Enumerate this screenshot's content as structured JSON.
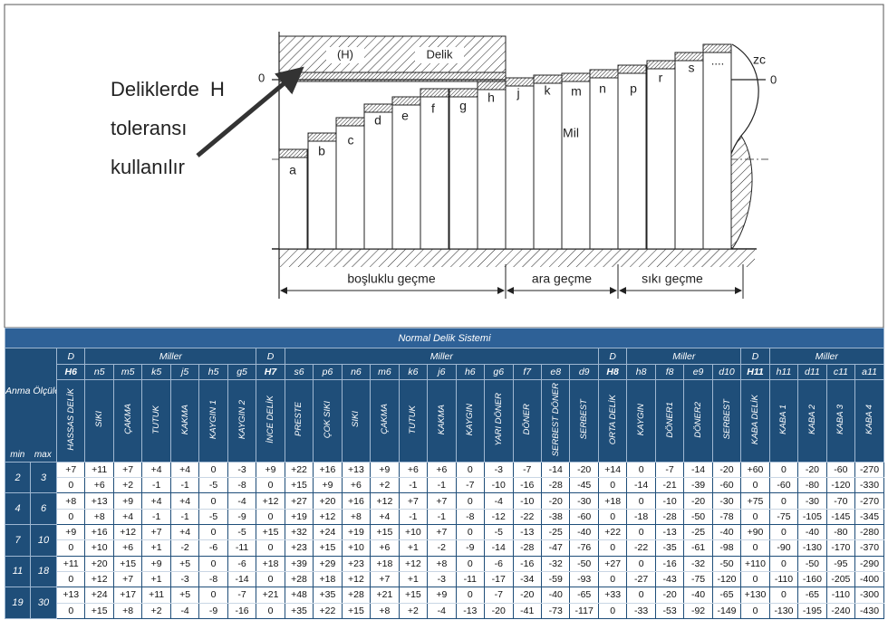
{
  "diagram": {
    "note_lines": [
      "Deliklerde  H",
      "toleransı",
      "kullanılır"
    ],
    "hole_code": "(H)",
    "hole_label": "Delik",
    "zero_left": "0",
    "zero_right": "0",
    "shaft_letters": [
      "a",
      "b",
      "c",
      "d",
      "e",
      "f",
      "g",
      "h",
      "j",
      "k",
      "m",
      "n",
      "p",
      "r",
      "s",
      "zc"
    ],
    "dots": "....",
    "shaft_label": "Mil",
    "fit_ranges": [
      "boşluklu geçme",
      "ara geçme",
      "sıkı geçme"
    ]
  },
  "table": {
    "title": "Normal Delik Sistemi",
    "size_header": "Anma Ölçüleri",
    "min": "min",
    "max": "max",
    "groups": [
      {
        "label": "D",
        "columns": [
          {
            "code": "H6",
            "name": "HASSAS DELİK"
          }
        ]
      },
      {
        "label": "Miller",
        "columns": [
          {
            "code": "n5",
            "name": "SIKI"
          },
          {
            "code": "m5",
            "name": "ÇAKMA"
          },
          {
            "code": "k5",
            "name": "TUTUK"
          },
          {
            "code": "j5",
            "name": "KAKMA"
          },
          {
            "code": "h5",
            "name": "KAYGIN 1"
          },
          {
            "code": "g5",
            "name": "KAYGIN 2"
          }
        ]
      },
      {
        "label": "D",
        "columns": [
          {
            "code": "H7",
            "name": "İNCE DELİK"
          }
        ]
      },
      {
        "label": "Miller",
        "columns": [
          {
            "code": "s6",
            "name": "PRESTE"
          },
          {
            "code": "p6",
            "name": "ÇOK SIKI"
          },
          {
            "code": "n6",
            "name": "SIKI"
          },
          {
            "code": "m6",
            "name": "ÇAKMA"
          },
          {
            "code": "k6",
            "name": "TUTUK"
          },
          {
            "code": "j6",
            "name": "KAKMA"
          },
          {
            "code": "h6",
            "name": "KAYGIN"
          },
          {
            "code": "g6",
            "name": "YARI DÖNER"
          },
          {
            "code": "f7",
            "name": "DÖNER"
          },
          {
            "code": "e8",
            "name": "SERBEST DÖNER"
          },
          {
            "code": "d9",
            "name": "SERBEST"
          }
        ]
      },
      {
        "label": "D",
        "columns": [
          {
            "code": "H8",
            "name": "ORTA DELİK"
          }
        ]
      },
      {
        "label": "Miller",
        "columns": [
          {
            "code": "h8",
            "name": "KAYGIN"
          },
          {
            "code": "f8",
            "name": "DÖNER1"
          },
          {
            "code": "e9",
            "name": "DÖNER2"
          },
          {
            "code": "d10",
            "name": "SERBEST"
          }
        ]
      },
      {
        "label": "D",
        "columns": [
          {
            "code": "H11",
            "name": "KABA DELİK"
          }
        ]
      },
      {
        "label": "Miller",
        "columns": [
          {
            "code": "h11",
            "name": "KABA 1"
          },
          {
            "code": "d11",
            "name": "KABA 2"
          },
          {
            "code": "c11",
            "name": "KABA 3"
          },
          {
            "code": "a11",
            "name": "KABA 4"
          }
        ]
      }
    ],
    "rows": [
      {
        "min": "2",
        "max": "3",
        "upper": [
          "+7",
          "+11",
          "+7",
          "+4",
          "+4",
          "0",
          "-3",
          "+9",
          "+22",
          "+16",
          "+13",
          "+9",
          "+6",
          "+6",
          "0",
          "-3",
          "-7",
          "-14",
          "-20",
          "+14",
          "0",
          "-7",
          "-14",
          "-20",
          "+60",
          "0",
          "-20",
          "-60",
          "-270"
        ],
        "lower": [
          "0",
          "+6",
          "+2",
          "-1",
          "-1",
          "-5",
          "-8",
          "0",
          "+15",
          "+9",
          "+6",
          "+2",
          "-1",
          "-1",
          "-7",
          "-10",
          "-16",
          "-28",
          "-45",
          "0",
          "-14",
          "-21",
          "-39",
          "-60",
          "0",
          "-60",
          "-80",
          "-120",
          "-330"
        ]
      },
      {
        "min": "4",
        "max": "6",
        "upper": [
          "+8",
          "+13",
          "+9",
          "+4",
          "+4",
          "0",
          "-4",
          "+12",
          "+27",
          "+20",
          "+16",
          "+12",
          "+7",
          "+7",
          "0",
          "-4",
          "-10",
          "-20",
          "-30",
          "+18",
          "0",
          "-10",
          "-20",
          "-30",
          "+75",
          "0",
          "-30",
          "-70",
          "-270"
        ],
        "lower": [
          "0",
          "+8",
          "+4",
          "-1",
          "-1",
          "-5",
          "-9",
          "0",
          "+19",
          "+12",
          "+8",
          "+4",
          "-1",
          "-1",
          "-8",
          "-12",
          "-22",
          "-38",
          "-60",
          "0",
          "-18",
          "-28",
          "-50",
          "-78",
          "0",
          "-75",
          "-105",
          "-145",
          "-345"
        ]
      },
      {
        "min": "7",
        "max": "10",
        "upper": [
          "+9",
          "+16",
          "+12",
          "+7",
          "+4",
          "0",
          "-5",
          "+15",
          "+32",
          "+24",
          "+19",
          "+15",
          "+10",
          "+7",
          "0",
          "-5",
          "-13",
          "-25",
          "-40",
          "+22",
          "0",
          "-13",
          "-25",
          "-40",
          "+90",
          "0",
          "-40",
          "-80",
          "-280"
        ],
        "lower": [
          "0",
          "+10",
          "+6",
          "+1",
          "-2",
          "-6",
          "-11",
          "0",
          "+23",
          "+15",
          "+10",
          "+6",
          "+1",
          "-2",
          "-9",
          "-14",
          "-28",
          "-47",
          "-76",
          "0",
          "-22",
          "-35",
          "-61",
          "-98",
          "0",
          "-90",
          "-130",
          "-170",
          "-370"
        ]
      },
      {
        "min": "11",
        "max": "18",
        "upper": [
          "+11",
          "+20",
          "+15",
          "+9",
          "+5",
          "0",
          "-6",
          "+18",
          "+39",
          "+29",
          "+23",
          "+18",
          "+12",
          "+8",
          "0",
          "-6",
          "-16",
          "-32",
          "-50",
          "+27",
          "0",
          "-16",
          "-32",
          "-50",
          "+110",
          "0",
          "-50",
          "-95",
          "-290"
        ],
        "lower": [
          "0",
          "+12",
          "+7",
          "+1",
          "-3",
          "-8",
          "-14",
          "0",
          "+28",
          "+18",
          "+12",
          "+7",
          "+1",
          "-3",
          "-11",
          "-17",
          "-34",
          "-59",
          "-93",
          "0",
          "-27",
          "-43",
          "-75",
          "-120",
          "0",
          "-110",
          "-160",
          "-205",
          "-400"
        ]
      },
      {
        "min": "19",
        "max": "30",
        "upper": [
          "+13",
          "+24",
          "+17",
          "+11",
          "+5",
          "0",
          "-7",
          "+21",
          "+48",
          "+35",
          "+28",
          "+21",
          "+15",
          "+9",
          "0",
          "-7",
          "-20",
          "-40",
          "-65",
          "+33",
          "0",
          "-20",
          "-40",
          "-65",
          "+130",
          "0",
          "-65",
          "-110",
          "-300"
        ],
        "lower": [
          "0",
          "+15",
          "+8",
          "+2",
          "-4",
          "-9",
          "-16",
          "0",
          "+35",
          "+22",
          "+15",
          "+8",
          "+2",
          "-4",
          "-13",
          "-20",
          "-41",
          "-73",
          "-117",
          "0",
          "-33",
          "-53",
          "-92",
          "-149",
          "0",
          "-130",
          "-195",
          "-240",
          "-430"
        ]
      }
    ]
  }
}
